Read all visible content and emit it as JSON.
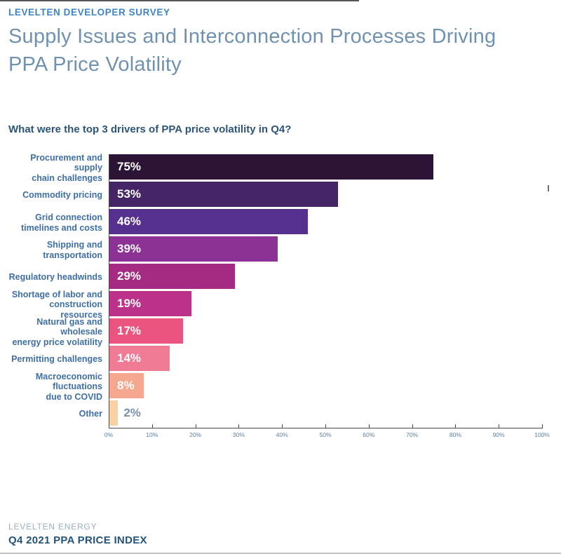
{
  "page": {
    "eyebrow": "LEVELTEN DEVELOPER SURVEY",
    "title_lines": [
      "Supply Issues and Interconnection Processes Driving",
      "PPA Price Volatility"
    ],
    "question": "What were the top 3 drivers of PPA price volatility in Q4?",
    "footer": {
      "brand": "LEVELTEN ENERGY",
      "report": "Q4 2021 PPA PRICE INDEX"
    }
  },
  "colors": {
    "eyebrow": "#3d85c6",
    "title": "#7092b0",
    "question": "#2c5579",
    "category_label": "#3f6fa4",
    "axis_line": "#4a4a4a",
    "tick_label": "#5b7fa6",
    "value_label_inside": "#ffffff",
    "value_label_outside": "#7b90ad"
  },
  "chart_data": {
    "type": "bar",
    "orientation": "horizontal",
    "title": "What were the top 3 drivers of PPA price volatility in Q4?",
    "xlabel": "",
    "ylabel": "",
    "xlim": [
      0,
      100
    ],
    "grid": false,
    "legend": false,
    "x_ticks": [
      "0%",
      "10%",
      "20%",
      "30%",
      "40%",
      "50%",
      "60%",
      "70%",
      "80%",
      "90%",
      "100%"
    ],
    "categories": [
      "Procurement and supply chain challenges",
      "Commodity pricing",
      "Grid connection timelines and costs",
      "Shipping and transportation",
      "Regulatory headwinds",
      "Shortage of labor and construction resources",
      "Natural gas and wholesale energy price volatility",
      "Permitting challenges",
      "Macroeconomic fluctuations due to COVID",
      "Other"
    ],
    "category_label_lines": [
      [
        "Procurement and supply",
        "chain challenges"
      ],
      [
        "Commodity pricing"
      ],
      [
        "Grid connection",
        "timelines and costs"
      ],
      [
        "Shipping and",
        "transportation"
      ],
      [
        "Regulatory headwinds"
      ],
      [
        "Shortage of labor and",
        "construction resources"
      ],
      [
        "Natural gas and wholesale",
        "energy price volatility"
      ],
      [
        "Permitting challenges"
      ],
      [
        "Macroeconomic",
        "fluctuations",
        "due to COVID"
      ],
      [
        "Other"
      ]
    ],
    "values": [
      75,
      53,
      46,
      39,
      29,
      19,
      17,
      14,
      8,
      2
    ],
    "value_labels": [
      "75%",
      "53%",
      "46%",
      "39%",
      "29%",
      "19%",
      "17%",
      "14%",
      "8%",
      "2%"
    ],
    "bar_colors": [
      "#2b1435",
      "#462567",
      "#56308e",
      "#8c3196",
      "#a52a81",
      "#bc3189",
      "#e9557f",
      "#ef7b94",
      "#f5a78f",
      "#fad1a5"
    ],
    "value_label_outside_index": 9
  }
}
